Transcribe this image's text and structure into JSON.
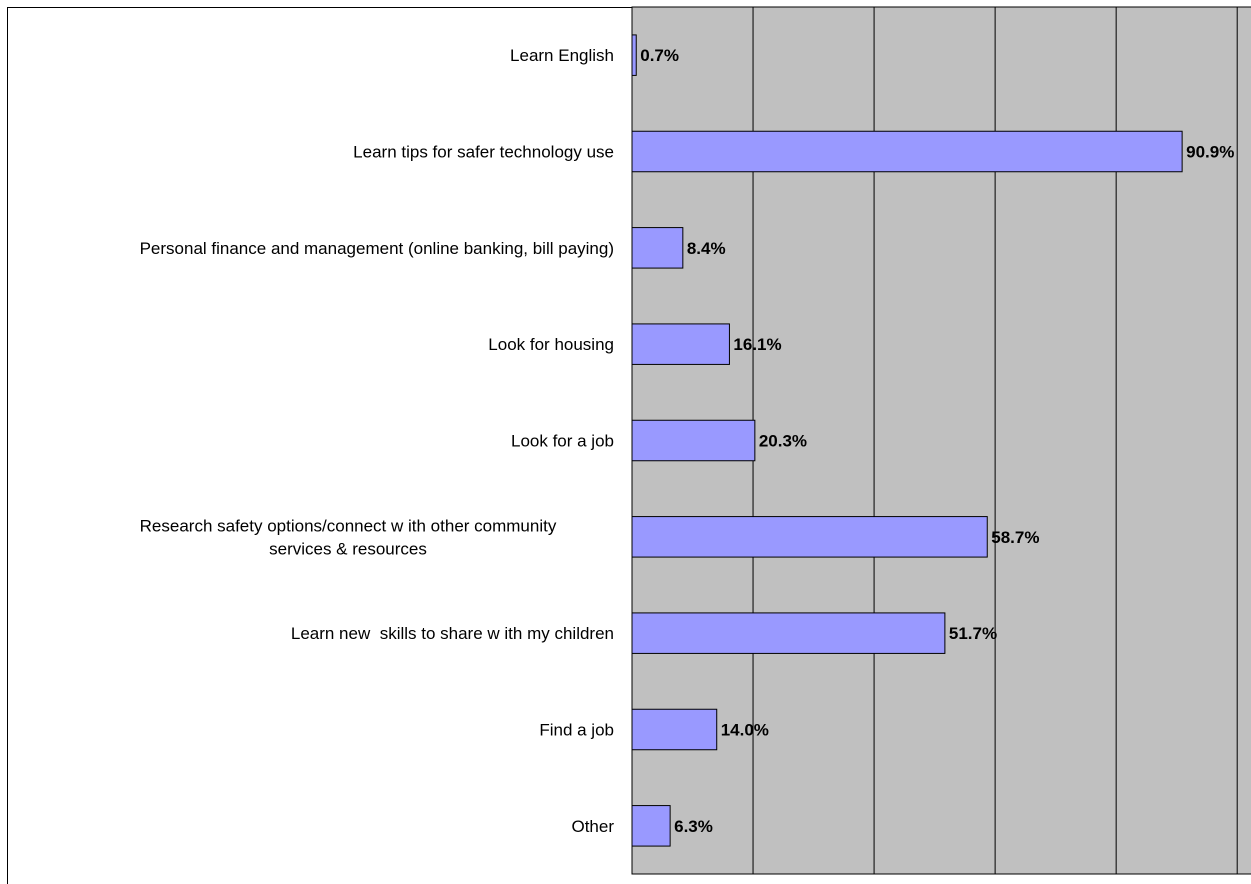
{
  "chart_data": {
    "type": "bar",
    "orientation": "horizontal",
    "categories": [
      "Learn English",
      "Learn tips for safer technology use",
      "Personal finance and management (online banking, bill paying)",
      "Look for housing",
      "Look for a job",
      "Research safety options/connect w ith other community services & resources",
      "Learn new  skills to share w ith my children",
      "Find a job",
      "Other"
    ],
    "category_lines": [
      [
        "Learn English"
      ],
      [
        "Learn tips for safer technology use"
      ],
      [
        "Personal finance and management (online banking, bill paying)"
      ],
      [
        "Look for housing"
      ],
      [
        "Look for a job"
      ],
      [
        "Research safety options/connect w ith other community",
        "services & resources"
      ],
      [
        "Learn new  skills to share w ith my children"
      ],
      [
        "Find a job"
      ],
      [
        "Other"
      ]
    ],
    "values": [
      0.7,
      90.9,
      8.4,
      16.1,
      20.3,
      58.7,
      51.7,
      14.0,
      6.3
    ],
    "value_labels": [
      "0.7%",
      "90.9%",
      "8.4%",
      "16.1%",
      "20.3%",
      "58.7%",
      "51.7%",
      "14.0%",
      "6.3%"
    ],
    "xlim": [
      0,
      100
    ],
    "grid": true,
    "legend": "none",
    "title": "",
    "xlabel": "",
    "ylabel": "",
    "colors": {
      "bar": "#9999ff",
      "plot_background": "#c0c0c0",
      "gridline": "#000000",
      "text": "#000000"
    }
  }
}
